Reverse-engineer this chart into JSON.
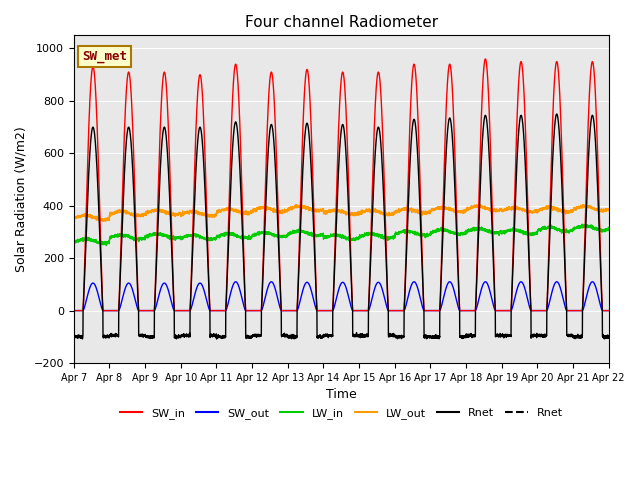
{
  "title": "Four channel Radiometer",
  "xlabel": "Time",
  "ylabel": "Solar Radiation (W/m2)",
  "ylim": [
    -200,
    1050
  ],
  "bg_color": "#e8e8e8",
  "annotation_text": "SW_met",
  "annotation_bg": "#ffffcc",
  "annotation_border": "#aa7700",
  "annotation_text_color": "#880000",
  "xtick_labels": [
    "Apr 7",
    "Apr 8",
    "Apr 9",
    "Apr 10",
    "Apr 11",
    "Apr 12",
    "Apr 13",
    "Apr 14",
    "Apr 15",
    "Apr 16",
    "Apr 17",
    "Apr 18",
    "Apr 19",
    "Apr 20",
    "Apr 21",
    "Apr 22"
  ],
  "legend_items": [
    {
      "label": "SW_in",
      "color": "#ff0000",
      "linestyle": "-"
    },
    {
      "label": "SW_out",
      "color": "#0000ff",
      "linestyle": "-"
    },
    {
      "label": "LW_in",
      "color": "#00cc00",
      "linestyle": "-"
    },
    {
      "label": "LW_out",
      "color": "#ff9900",
      "linestyle": "-"
    },
    {
      "label": "Rnet",
      "color": "#000000",
      "linestyle": "-"
    },
    {
      "label": "Rnet",
      "color": "#000000",
      "linestyle": "-"
    }
  ],
  "num_days": 15,
  "sw_in_peak": [
    930,
    910,
    910,
    900,
    940,
    910,
    920,
    910,
    910,
    940,
    940,
    960,
    950,
    950,
    950
  ],
  "sw_out_peak": [
    105,
    105,
    105,
    105,
    110,
    110,
    108,
    108,
    108,
    110,
    110,
    110,
    110,
    110,
    110
  ],
  "lw_in_base": [
    265,
    280,
    285,
    280,
    285,
    290,
    295,
    280,
    285,
    295,
    300,
    305,
    300,
    310,
    315
  ],
  "lw_out_base": [
    355,
    370,
    375,
    370,
    380,
    385,
    390,
    375,
    375,
    380,
    385,
    390,
    385,
    385,
    390
  ],
  "rnet_peak": [
    700,
    700,
    700,
    700,
    720,
    710,
    715,
    710,
    700,
    730,
    735,
    745,
    745,
    750,
    745
  ],
  "rnet_night": [
    -100,
    -95,
    -100,
    -95,
    -100,
    -95,
    -100,
    -95,
    -95,
    -100,
    -100,
    -95,
    -95,
    -95,
    -100
  ]
}
